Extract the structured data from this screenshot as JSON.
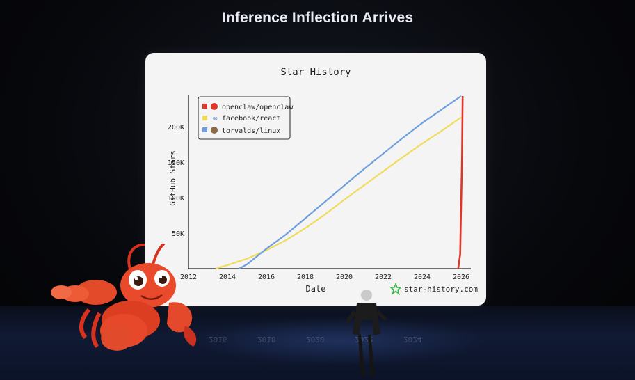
{
  "slide": {
    "title": "Inference Inflection Arrives"
  },
  "chart_data": {
    "type": "line",
    "title": "Star History",
    "xlabel": "Date",
    "ylabel": "GitHub Stars",
    "x_ticks": [
      "2012",
      "2014",
      "2016",
      "2018",
      "2020",
      "2022",
      "2024",
      "2026"
    ],
    "y_ticks": [
      "50K",
      "100K",
      "150K",
      "200K"
    ],
    "xlim": [
      2012,
      2026.5
    ],
    "ylim": [
      0,
      245000
    ],
    "legend_position": "top-left",
    "watermark": "star-history.com",
    "series": [
      {
        "name": "openclaw/openclaw",
        "color": "#e0352b",
        "points": [
          [
            2025.85,
            0
          ],
          [
            2025.95,
            20000
          ],
          [
            2026.05,
            160000
          ],
          [
            2026.08,
            243000
          ]
        ]
      },
      {
        "name": "facebook/react",
        "color": "#f0dc5a",
        "points": [
          [
            2013.4,
            0
          ],
          [
            2014.0,
            5000
          ],
          [
            2015.0,
            14000
          ],
          [
            2016.0,
            26000
          ],
          [
            2017.0,
            40000
          ],
          [
            2018.0,
            57000
          ],
          [
            2019.0,
            76000
          ],
          [
            2020.0,
            97000
          ],
          [
            2021.0,
            117000
          ],
          [
            2022.0,
            137000
          ],
          [
            2023.0,
            157000
          ],
          [
            2024.0,
            176000
          ],
          [
            2025.0,
            194000
          ],
          [
            2026.0,
            213000
          ]
        ]
      },
      {
        "name": "torvalds/linux",
        "color": "#6f9fdf",
        "points": [
          [
            2014.6,
            0
          ],
          [
            2015.0,
            6000
          ],
          [
            2016.0,
            28000
          ],
          [
            2017.0,
            48000
          ],
          [
            2018.0,
            71000
          ],
          [
            2019.0,
            94000
          ],
          [
            2020.0,
            117000
          ],
          [
            2021.0,
            140000
          ],
          [
            2022.0,
            162000
          ],
          [
            2023.0,
            184000
          ],
          [
            2024.0,
            205000
          ],
          [
            2025.0,
            224000
          ],
          [
            2026.0,
            243000
          ]
        ]
      }
    ]
  }
}
